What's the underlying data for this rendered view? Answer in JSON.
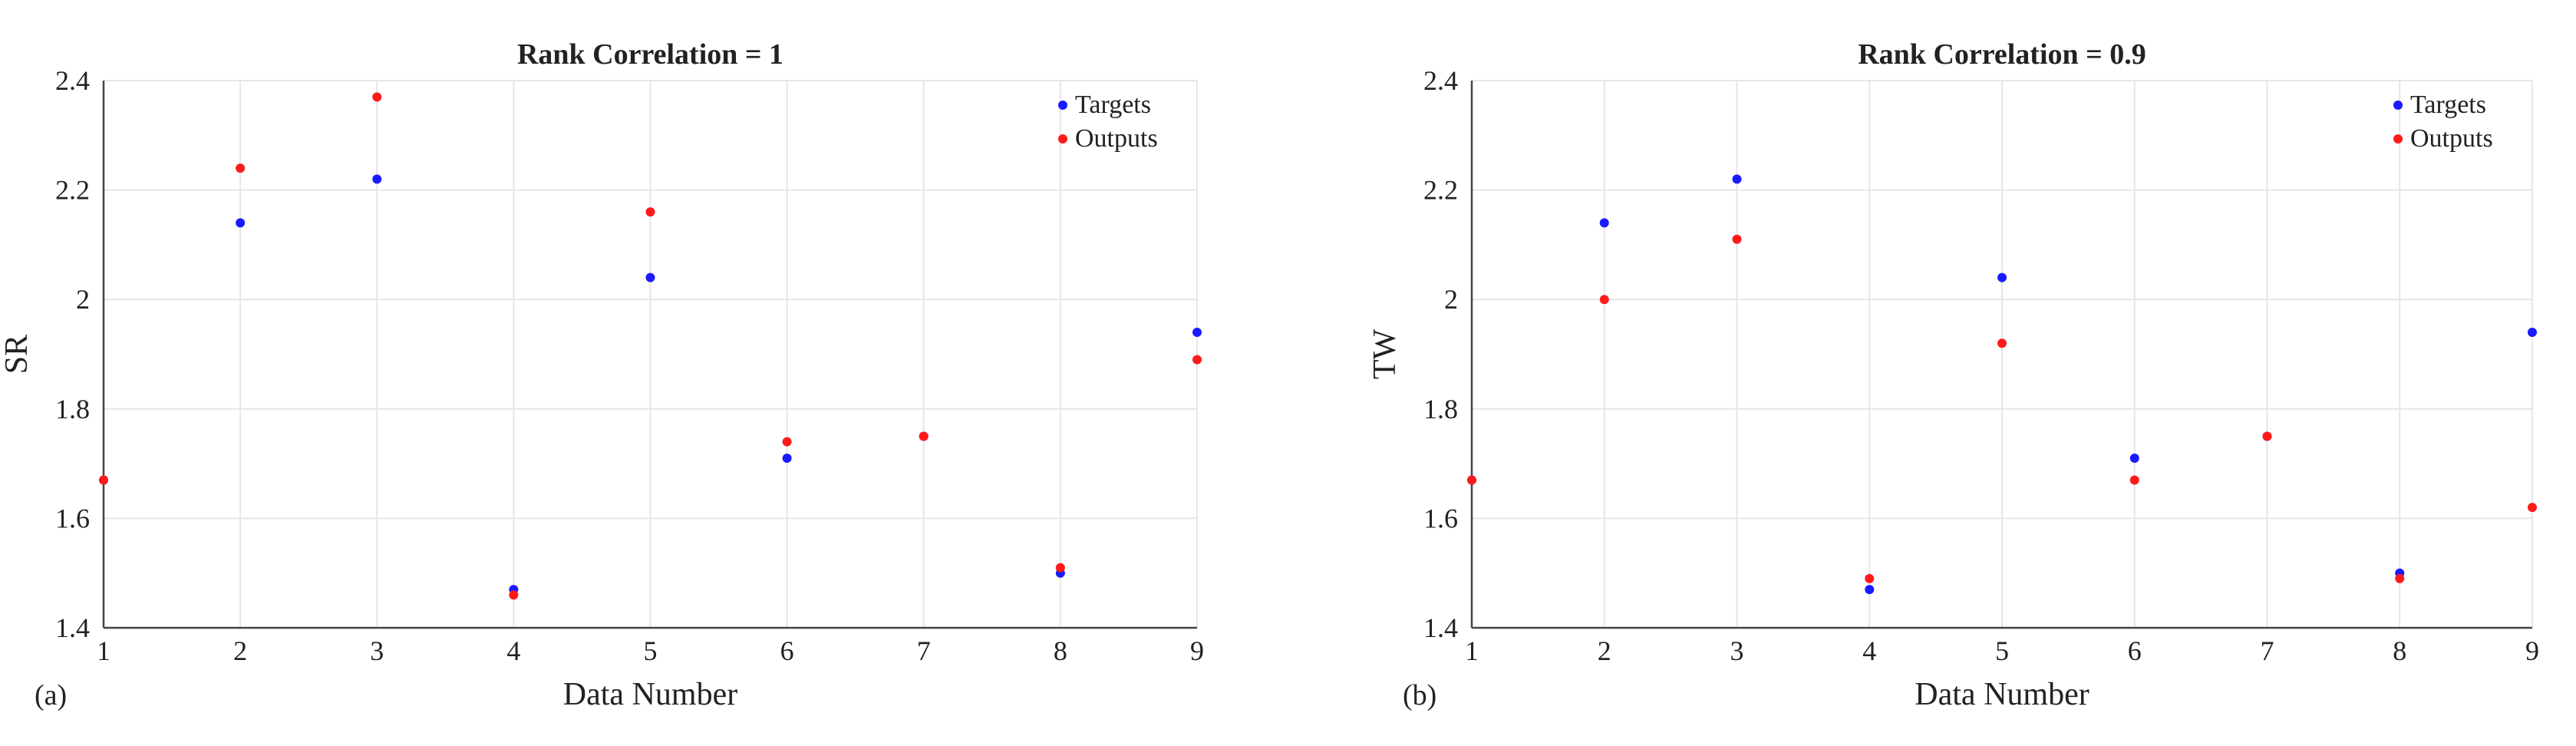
{
  "chart_data": [
    {
      "type": "scatter",
      "panel_label": "(a)",
      "title": "Rank Correlation = 1",
      "xlabel": "Data Number",
      "ylabel": "SR",
      "xlim": [
        1,
        9
      ],
      "ylim": [
        1.4,
        2.4
      ],
      "x_ticks": [
        "1",
        "2",
        "3",
        "4",
        "5",
        "6",
        "7",
        "8",
        "9"
      ],
      "y_ticks": [
        "1.4",
        "1.6",
        "1.8",
        "2",
        "2.2",
        "2.4"
      ],
      "grid": true,
      "legend_position": "top-right",
      "x": [
        1,
        2,
        3,
        4,
        5,
        6,
        7,
        8,
        9
      ],
      "series": [
        {
          "name": "Targets",
          "color": "#1a1aff",
          "values": [
            1.67,
            2.14,
            2.22,
            1.47,
            2.04,
            1.71,
            1.75,
            1.5,
            1.94
          ]
        },
        {
          "name": "Outputs",
          "color": "#ff1a1a",
          "values": [
            1.67,
            2.24,
            2.37,
            1.46,
            2.16,
            1.74,
            1.75,
            1.51,
            1.89
          ]
        }
      ]
    },
    {
      "type": "scatter",
      "panel_label": "(b)",
      "title": "Rank Correlation = 0.9",
      "xlabel": "Data Number",
      "ylabel": "TW",
      "xlim": [
        1,
        9
      ],
      "ylim": [
        1.4,
        2.4
      ],
      "x_ticks": [
        "1",
        "2",
        "3",
        "4",
        "5",
        "6",
        "7",
        "8",
        "9"
      ],
      "y_ticks": [
        "1.4",
        "1.6",
        "1.8",
        "2",
        "2.2",
        "2.4"
      ],
      "grid": true,
      "legend_position": "top-right",
      "x": [
        1,
        2,
        3,
        4,
        5,
        6,
        7,
        8,
        9
      ],
      "series": [
        {
          "name": "Targets",
          "color": "#1a1aff",
          "values": [
            1.67,
            2.14,
            2.22,
            1.47,
            2.04,
            1.71,
            1.75,
            1.5,
            1.94
          ]
        },
        {
          "name": "Outputs",
          "color": "#ff1a1a",
          "values": [
            1.67,
            2.0,
            2.11,
            1.49,
            1.92,
            1.67,
            1.75,
            1.49,
            1.62
          ]
        }
      ]
    }
  ]
}
